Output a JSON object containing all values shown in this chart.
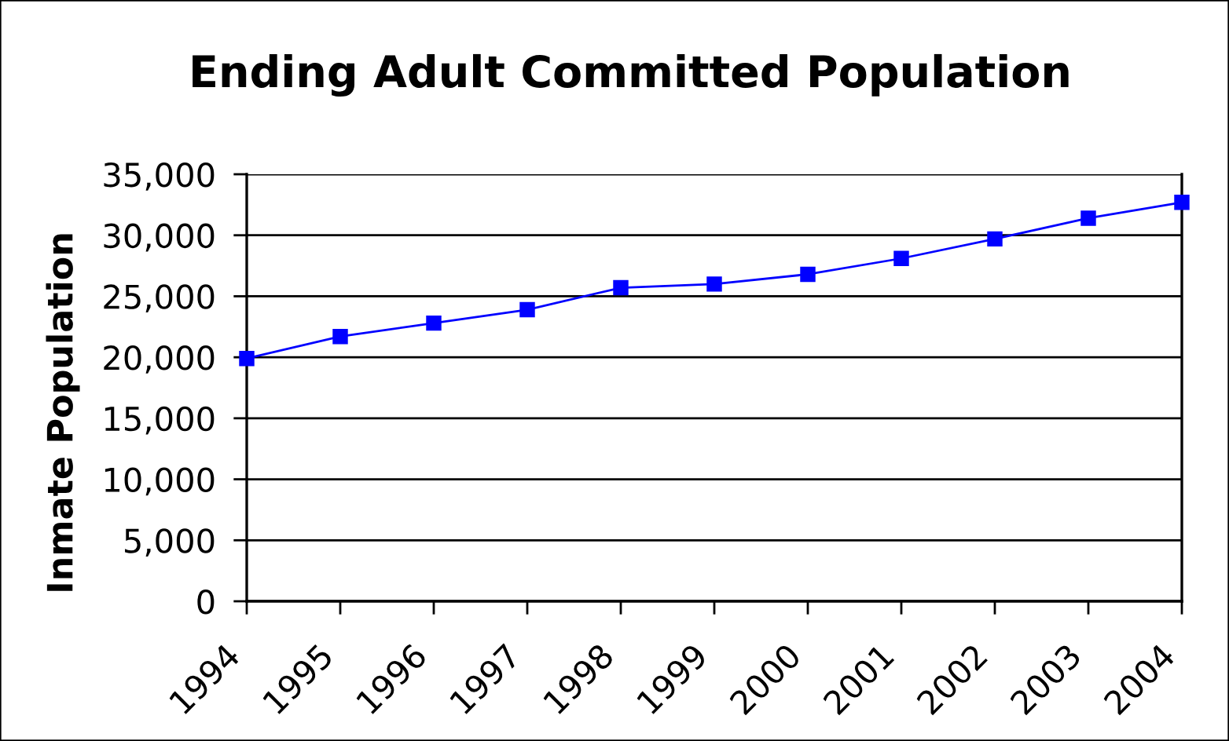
{
  "chart_data": {
    "type": "line",
    "title": "Ending Adult Committed Population",
    "ylabel": "Inmate Population",
    "categories": [
      "1994",
      "1995",
      "1996",
      "1997",
      "1998",
      "1999",
      "2000",
      "2001",
      "2002",
      "2003",
      "2004"
    ],
    "series": [
      {
        "color": "#0000ff",
        "values": [
          19900,
          21700,
          22800,
          23900,
          25700,
          26000,
          26800,
          28100,
          29700,
          31400,
          32700
        ]
      }
    ],
    "ylim": [
      0,
      35000
    ],
    "yticks": [
      {
        "value": 0,
        "label": "0"
      },
      {
        "value": 5000,
        "label": "5,000"
      },
      {
        "value": 10000,
        "label": "10,000"
      },
      {
        "value": 15000,
        "label": "15,000"
      },
      {
        "value": 20000,
        "label": "20,000"
      },
      {
        "value": 25000,
        "label": "25,000"
      },
      {
        "value": 30000,
        "label": "30,000"
      },
      {
        "value": 35000,
        "label": "35,000"
      }
    ],
    "grid": "y",
    "marker": "square",
    "line_style": "solid"
  }
}
